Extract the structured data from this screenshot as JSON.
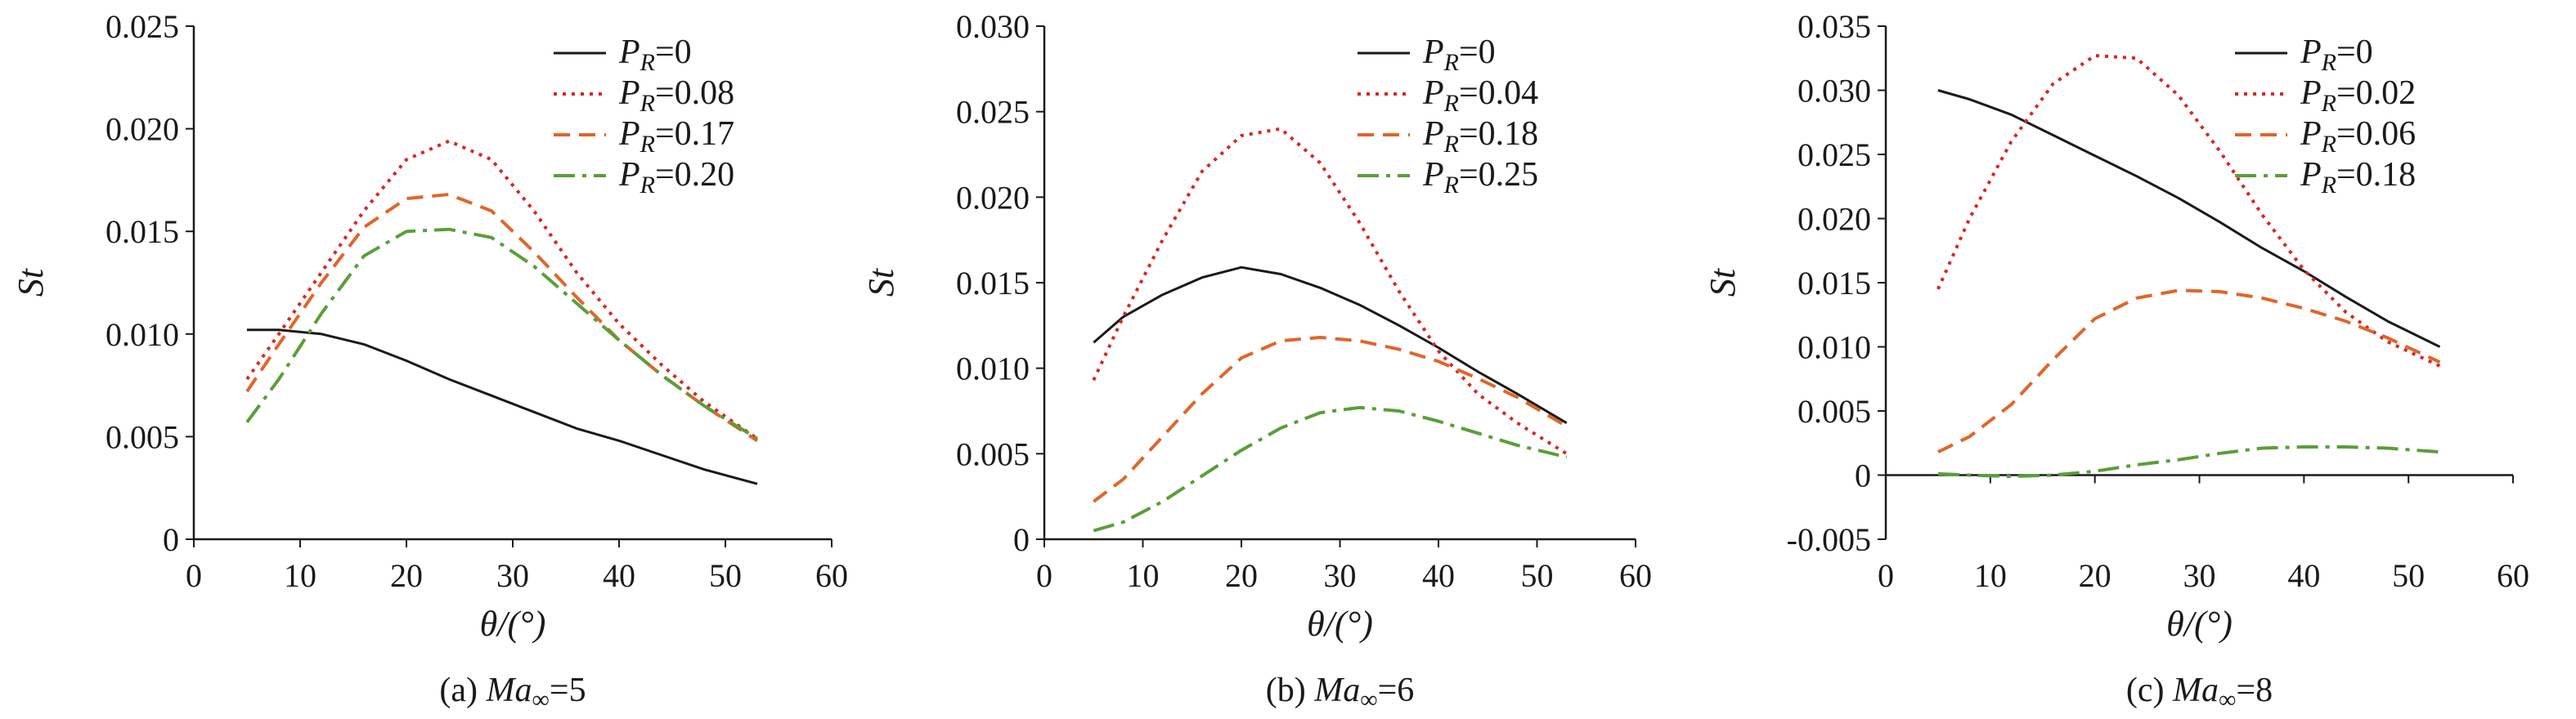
{
  "chart_data": [
    {
      "type": "line",
      "caption_prefix": "(a) ",
      "caption_var": "Ma",
      "caption_sub": "∞",
      "caption_suffix": "=5",
      "xlabel": "θ/(°)",
      "ylabel": "St",
      "xlim": [
        0,
        60
      ],
      "ylim": [
        0,
        0.025
      ],
      "xticks": [
        "0",
        "10",
        "20",
        "30",
        "40",
        "50",
        "60"
      ],
      "yticks": [
        "0",
        "0.005",
        "0.010",
        "0.015",
        "0.020",
        "0.025"
      ],
      "legend_position": "top-right",
      "series": [
        {
          "name": "P_R=0",
          "label_main": "P",
          "label_sub": "R",
          "label_value": "=0",
          "color": "#1a1a1a",
          "dash": "solid",
          "x": [
            5,
            8,
            12,
            16,
            20,
            24,
            28,
            32,
            36,
            40,
            44,
            48,
            53
          ],
          "y": [
            0.0102,
            0.0102,
            0.01,
            0.0095,
            0.0087,
            0.0078,
            0.007,
            0.0062,
            0.0054,
            0.0048,
            0.0041,
            0.0034,
            0.0027
          ]
        },
        {
          "name": "P_R=0.08",
          "label_main": "P",
          "label_sub": "R",
          "label_value": "=0.08",
          "color": "#d62728",
          "dash": "dotted",
          "x": [
            5,
            8,
            12,
            16,
            20,
            24,
            28,
            32,
            36,
            40,
            44,
            48,
            53
          ],
          "y": [
            0.0078,
            0.01,
            0.013,
            0.016,
            0.0185,
            0.0194,
            0.0185,
            0.016,
            0.013,
            0.0105,
            0.0085,
            0.0067,
            0.0049
          ]
        },
        {
          "name": "P_R=0.17",
          "label_main": "P",
          "label_sub": "R",
          "label_value": "=0.17",
          "color": "#e0662a",
          "dash": "dashed",
          "x": [
            5,
            8,
            12,
            16,
            20,
            24,
            28,
            32,
            36,
            40,
            44,
            48,
            53
          ],
          "y": [
            0.0072,
            0.0095,
            0.0125,
            0.0152,
            0.0166,
            0.0168,
            0.016,
            0.014,
            0.0118,
            0.0097,
            0.008,
            0.0065,
            0.0048
          ]
        },
        {
          "name": "P_R=0.20",
          "label_main": "P",
          "label_sub": "R",
          "label_value": "=0.20",
          "color": "#5a9e3a",
          "dash": "dashdot",
          "x": [
            5,
            8,
            12,
            16,
            20,
            24,
            28,
            32,
            36,
            40,
            44,
            48,
            53
          ],
          "y": [
            0.0057,
            0.0078,
            0.011,
            0.0138,
            0.015,
            0.0151,
            0.0147,
            0.0133,
            0.0115,
            0.0097,
            0.008,
            0.0065,
            0.0049
          ]
        }
      ]
    },
    {
      "type": "line",
      "caption_prefix": "(b) ",
      "caption_var": "Ma",
      "caption_sub": "∞",
      "caption_suffix": "=6",
      "xlabel": "θ/(°)",
      "ylabel": "St",
      "xlim": [
        0,
        60
      ],
      "ylim": [
        0,
        0.03
      ],
      "xticks": [
        "0",
        "10",
        "20",
        "30",
        "40",
        "50",
        "60"
      ],
      "yticks": [
        "0",
        "0.005",
        "0.010",
        "0.015",
        "0.020",
        "0.025",
        "0.030"
      ],
      "legend_position": "top-right",
      "series": [
        {
          "name": "P_R=0",
          "label_main": "P",
          "label_sub": "R",
          "label_value": "=0",
          "color": "#1a1a1a",
          "dash": "solid",
          "x": [
            5,
            8,
            12,
            16,
            20,
            24,
            28,
            32,
            36,
            40,
            44,
            48,
            53
          ],
          "y": [
            0.0115,
            0.013,
            0.0143,
            0.0153,
            0.0159,
            0.0155,
            0.0147,
            0.0137,
            0.0125,
            0.0112,
            0.0098,
            0.0085,
            0.0068
          ]
        },
        {
          "name": "P_R=0.04",
          "label_main": "P",
          "label_sub": "R",
          "label_value": "=0.04",
          "color": "#d62728",
          "dash": "dotted",
          "x": [
            5,
            8,
            12,
            16,
            20,
            24,
            28,
            32,
            36,
            40,
            44,
            48,
            53
          ],
          "y": [
            0.0093,
            0.013,
            0.0175,
            0.0215,
            0.0236,
            0.024,
            0.022,
            0.0185,
            0.0145,
            0.011,
            0.0085,
            0.0068,
            0.005
          ]
        },
        {
          "name": "P_R=0.18",
          "label_main": "P",
          "label_sub": "R",
          "label_value": "=0.18",
          "color": "#e0662a",
          "dash": "dashed",
          "x": [
            5,
            8,
            12,
            16,
            20,
            24,
            28,
            32,
            36,
            40,
            44,
            48,
            53
          ],
          "y": [
            0.0022,
            0.0035,
            0.006,
            0.0085,
            0.0106,
            0.0116,
            0.0118,
            0.0116,
            0.0111,
            0.0104,
            0.0094,
            0.0083,
            0.0066
          ]
        },
        {
          "name": "P_R=0.25",
          "label_main": "P",
          "label_sub": "R",
          "label_value": "=0.25",
          "color": "#5a9e3a",
          "dash": "dashdot",
          "x": [
            5,
            8,
            12,
            16,
            20,
            24,
            28,
            32,
            36,
            40,
            44,
            48,
            53
          ],
          "y": [
            0.0005,
            0.001,
            0.0022,
            0.0037,
            0.0052,
            0.0065,
            0.0074,
            0.0077,
            0.0075,
            0.0069,
            0.0062,
            0.0055,
            0.0048
          ]
        }
      ]
    },
    {
      "type": "line",
      "caption_prefix": "(c) ",
      "caption_var": "Ma",
      "caption_sub": "∞",
      "caption_suffix": "=8",
      "xlabel": "θ/(°)",
      "ylabel": "St",
      "xlim": [
        0,
        60
      ],
      "ylim": [
        -0.005,
        0.035
      ],
      "xticks": [
        "0",
        "10",
        "20",
        "30",
        "40",
        "50",
        "60"
      ],
      "yticks": [
        "-0.005",
        "0",
        "0.005",
        "0.010",
        "0.015",
        "0.020",
        "0.025",
        "0.030",
        "0.035"
      ],
      "legend_position": "top-right",
      "series": [
        {
          "name": "P_R=0",
          "label_main": "P",
          "label_sub": "R",
          "label_value": "=0",
          "color": "#1a1a1a",
          "dash": "solid",
          "x": [
            5,
            8,
            12,
            16,
            20,
            24,
            28,
            32,
            36,
            40,
            44,
            48,
            53
          ],
          "y": [
            0.03,
            0.0293,
            0.0281,
            0.0265,
            0.0249,
            0.0233,
            0.0216,
            0.0197,
            0.0177,
            0.0159,
            0.0139,
            0.012,
            0.01
          ]
        },
        {
          "name": "P_R=0.02",
          "label_main": "P",
          "label_sub": "R",
          "label_value": "=0.02",
          "color": "#d62728",
          "dash": "dotted",
          "x": [
            5,
            8,
            12,
            16,
            20,
            24,
            28,
            32,
            36,
            40,
            44,
            48,
            53
          ],
          "y": [
            0.0145,
            0.02,
            0.026,
            0.0305,
            0.0327,
            0.0325,
            0.0296,
            0.0252,
            0.0203,
            0.016,
            0.0127,
            0.0104,
            0.0085
          ]
        },
        {
          "name": "P_R=0.06",
          "label_main": "P",
          "label_sub": "R",
          "label_value": "=0.06",
          "color": "#e0662a",
          "dash": "dashed",
          "x": [
            5,
            8,
            12,
            16,
            20,
            24,
            28,
            32,
            36,
            40,
            44,
            48,
            53
          ],
          "y": [
            0.0018,
            0.003,
            0.0055,
            0.009,
            0.0122,
            0.0138,
            0.0144,
            0.0143,
            0.0138,
            0.013,
            0.012,
            0.0107,
            0.0088
          ]
        },
        {
          "name": "P_R=0.18",
          "label_main": "P",
          "label_sub": "R",
          "label_value": "=0.18",
          "color": "#5a9e3a",
          "dash": "dashdot",
          "x": [
            5,
            8,
            12,
            16,
            20,
            24,
            28,
            32,
            36,
            40,
            44,
            48,
            53
          ],
          "y": [
            0.0001,
            0.0,
            -0.0001,
            0.0,
            0.0003,
            0.0008,
            0.0012,
            0.0017,
            0.0021,
            0.0022,
            0.0022,
            0.0021,
            0.0018
          ]
        }
      ]
    }
  ]
}
